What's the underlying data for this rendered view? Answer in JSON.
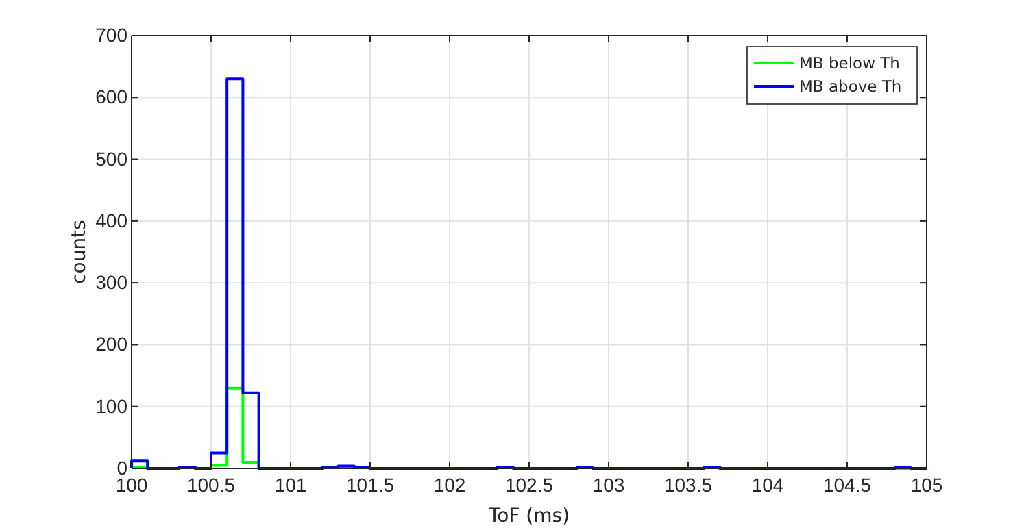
{
  "chart_data": {
    "type": "histogram",
    "xlabel": "ToF (ms)",
    "ylabel": "counts",
    "bins": [
      100,
      100.1,
      100.2,
      100.3,
      100.4,
      100.5,
      100.6,
      100.7,
      100.8,
      100.9,
      101,
      101.1,
      101.2,
      101.3,
      101.4,
      101.5,
      101.6,
      101.7,
      101.8,
      101.9,
      102,
      102.1,
      102.2,
      102.3,
      102.4,
      102.5,
      102.6,
      102.7,
      102.8,
      102.9,
      103,
      103.1,
      103.2,
      103.3,
      103.4,
      103.5,
      103.6,
      103.7,
      103.8,
      103.9,
      104,
      104.1,
      104.2,
      104.3,
      104.4,
      104.5,
      104.6,
      104.7,
      104.8,
      104.9,
      105
    ],
    "series": [
      {
        "name": "MB below Th",
        "color": "#00ff00",
        "values": [
          2,
          0,
          0,
          2,
          0,
          5,
          130,
          10,
          0,
          0,
          0,
          0,
          1,
          2,
          1,
          0,
          0,
          0,
          0,
          0,
          0,
          0,
          0,
          1,
          0,
          0,
          0,
          0,
          2,
          0,
          0,
          0,
          0,
          0,
          0,
          0,
          2,
          0,
          0,
          0,
          0,
          0,
          0,
          0,
          0,
          0,
          0,
          0,
          0,
          0
        ]
      },
      {
        "name": "MB above Th",
        "color": "#0000ff",
        "values": [
          12,
          0,
          0,
          2,
          0,
          25,
          630,
          122,
          0,
          0,
          0,
          0,
          2,
          4,
          1,
          0,
          0,
          0,
          0,
          0,
          0,
          0,
          0,
          2,
          0,
          0,
          0,
          0,
          1,
          0,
          0,
          0,
          0,
          0,
          0,
          0,
          2,
          0,
          0,
          0,
          0,
          0,
          0,
          0,
          0,
          0,
          0,
          0,
          1,
          0
        ]
      }
    ],
    "xlim": [
      100,
      105
    ],
    "xticks": [
      100,
      100.5,
      101,
      101.5,
      102,
      102.5,
      103,
      103.5,
      104,
      104.5,
      105
    ],
    "ylim": [
      0,
      700
    ],
    "yticks": [
      0,
      100,
      200,
      300,
      400,
      500,
      600,
      700
    ],
    "grid": true,
    "legend": "top right"
  }
}
